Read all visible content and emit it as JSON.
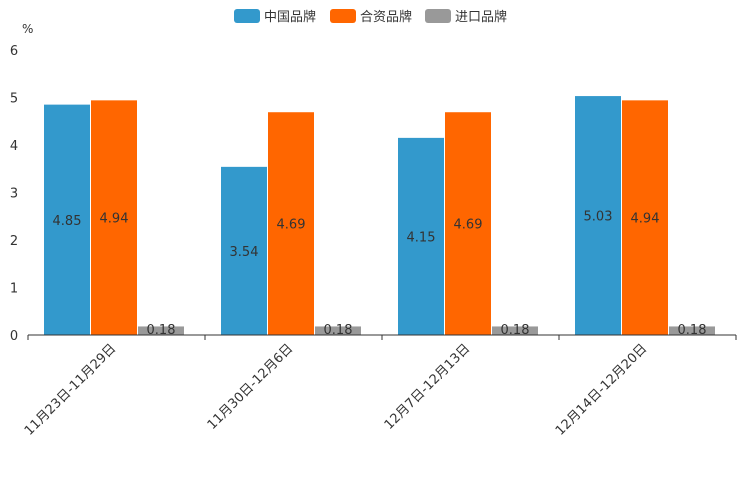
{
  "chart_data": {
    "type": "bar",
    "unit": "%",
    "categories": [
      "11月23日-11月29日",
      "11月30日-12月6日",
      "12月7日-12月13日",
      "12月14日-12月20日"
    ],
    "series": [
      {
        "name": "中国品牌",
        "color": "#3399cc",
        "values": [
          4.85,
          3.54,
          4.15,
          5.03
        ],
        "labels": [
          "4.85",
          "3.54",
          "4.15",
          "5.03"
        ]
      },
      {
        "name": "合资品牌",
        "color": "#ff6600",
        "values": [
          4.94,
          4.69,
          4.69,
          4.94
        ],
        "labels": [
          "4.94",
          "4.69",
          "4.69",
          "4.94"
        ]
      },
      {
        "name": "进口品牌",
        "color": "#999999",
        "values": [
          0.18,
          0.18,
          0.18,
          0.18
        ],
        "labels": [
          "0.18",
          "0.18",
          "0.18",
          "0.18"
        ]
      }
    ],
    "yticks": [
      "0",
      "1",
      "2",
      "3",
      "4",
      "5",
      "6"
    ],
    "ylim": [
      0,
      6
    ],
    "legend_position": "top-center",
    "grid": false
  }
}
